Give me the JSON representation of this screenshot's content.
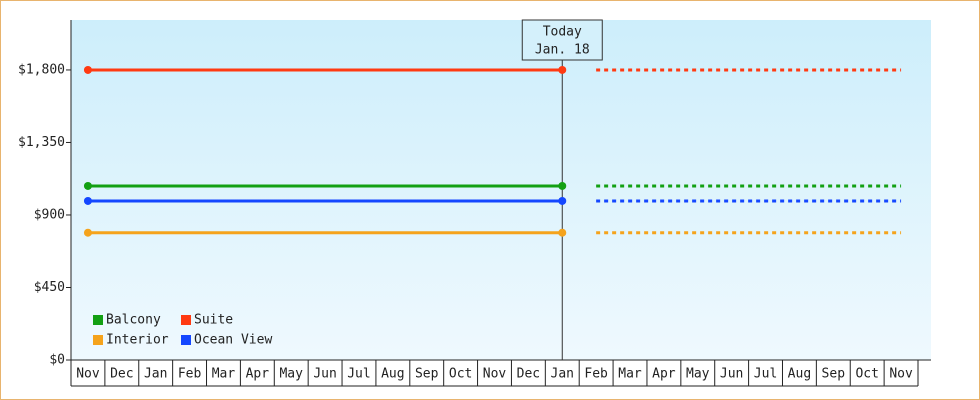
{
  "chart_data": {
    "type": "line",
    "categories": [
      "Nov",
      "Dec",
      "Jan",
      "Feb",
      "Mar",
      "Apr",
      "May",
      "Jun",
      "Jul",
      "Aug",
      "Sep",
      "Oct",
      "Nov",
      "Dec",
      "Jan",
      "Feb",
      "Mar",
      "Apr",
      "May",
      "Jun",
      "Jul",
      "Aug",
      "Sep",
      "Oct",
      "Nov"
    ],
    "series": [
      {
        "name": "Balcony",
        "color": "#13a013",
        "values": [
          1080,
          1080,
          1080,
          1080,
          1080,
          1080,
          1080,
          1080,
          1080,
          1080,
          1080,
          1080,
          1080,
          1080,
          1080,
          1080,
          1080,
          1080,
          1080,
          1080,
          1080,
          1080,
          1080,
          1080,
          1080
        ]
      },
      {
        "name": "Suite",
        "color": "#ff3a12",
        "values": [
          1800,
          1800,
          1800,
          1800,
          1800,
          1800,
          1800,
          1800,
          1800,
          1800,
          1800,
          1800,
          1800,
          1800,
          1800,
          1800,
          1800,
          1800,
          1800,
          1800,
          1800,
          1800,
          1800,
          1800,
          1800
        ]
      },
      {
        "name": "Interior",
        "color": "#f5a31c",
        "values": [
          790,
          790,
          790,
          790,
          790,
          790,
          790,
          790,
          790,
          790,
          790,
          790,
          790,
          790,
          790,
          790,
          790,
          790,
          790,
          790,
          790,
          790,
          790,
          790,
          790
        ]
      },
      {
        "name": "Ocean View",
        "color": "#1447ff",
        "values": [
          987,
          987,
          987,
          987,
          987,
          987,
          987,
          987,
          987,
          987,
          987,
          987,
          987,
          987,
          987,
          987,
          987,
          987,
          987,
          987,
          987,
          987,
          987,
          987,
          987
        ]
      }
    ],
    "annotation": {
      "lines": [
        "Today",
        "Jan. 18"
      ],
      "category_index": 14
    },
    "ylim": [
      0,
      2110
    ],
    "yticks": [
      {
        "value": 0,
        "label": "$0"
      },
      {
        "value": 450,
        "label": "$450"
      },
      {
        "value": 900,
        "label": "$900"
      },
      {
        "value": 1350,
        "label": "$1,350"
      },
      {
        "value": 1800,
        "label": "$1,800"
      }
    ]
  }
}
